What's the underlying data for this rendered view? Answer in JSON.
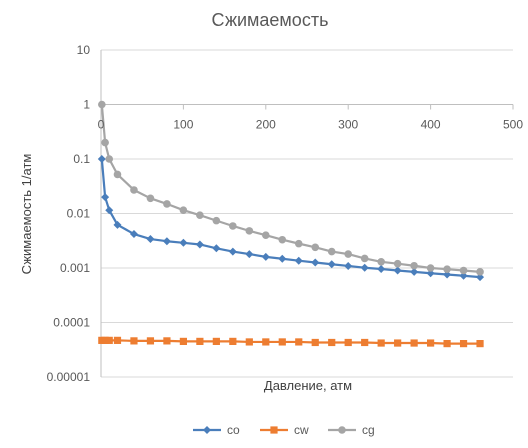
{
  "chart_data": {
    "type": "line",
    "title": "Сжимаемость",
    "xlabel": "Давление, атм",
    "ylabel": "Сжимаемость 1/атм",
    "xlim": [
      0,
      500
    ],
    "ylim": [
      1e-05,
      10
    ],
    "y_scale": "log",
    "x_ticks": [
      "0",
      "100",
      "200",
      "300",
      "400",
      "500"
    ],
    "y_ticks": [
      "10",
      "1",
      "0.1",
      "0.01",
      "0.001",
      "0.0001",
      "0.00001"
    ],
    "grid": true,
    "legend_position": "bottom",
    "x": [
      1,
      5,
      10,
      20,
      40,
      60,
      80,
      100,
      120,
      140,
      160,
      180,
      200,
      220,
      240,
      260,
      280,
      300,
      320,
      340,
      360,
      380,
      400,
      420,
      440,
      460
    ],
    "series": [
      {
        "name": "co",
        "color": "#4a7ebb",
        "marker": "diamond",
        "values": [
          0.1,
          0.02,
          0.0115,
          0.0062,
          0.0042,
          0.0034,
          0.0031,
          0.0029,
          0.0027,
          0.0023,
          0.002,
          0.0018,
          0.0016,
          0.00148,
          0.00136,
          0.00126,
          0.00117,
          0.00109,
          0.00101,
          0.00096,
          0.0009,
          0.00085,
          0.0008,
          0.00076,
          0.00072,
          0.00068
        ]
      },
      {
        "name": "cw",
        "color": "#ed7d31",
        "marker": "square",
        "values": [
          4.7e-05,
          4.7e-05,
          4.7e-05,
          4.7e-05,
          4.6e-05,
          4.6e-05,
          4.6e-05,
          4.5e-05,
          4.5e-05,
          4.5e-05,
          4.5e-05,
          4.4e-05,
          4.4e-05,
          4.4e-05,
          4.4e-05,
          4.3e-05,
          4.3e-05,
          4.3e-05,
          4.3e-05,
          4.2e-05,
          4.2e-05,
          4.2e-05,
          4.2e-05,
          4.1e-05,
          4.1e-05,
          4.1e-05
        ]
      },
      {
        "name": "cg",
        "color": "#a5a5a5",
        "marker": "circle",
        "values": [
          1.0,
          0.2,
          0.1,
          0.052,
          0.027,
          0.019,
          0.015,
          0.0115,
          0.0093,
          0.0074,
          0.0059,
          0.0048,
          0.004,
          0.0033,
          0.0028,
          0.0024,
          0.002,
          0.0018,
          0.0015,
          0.0013,
          0.0012,
          0.0011,
          0.001,
          0.00095,
          0.0009,
          0.00085
        ]
      }
    ]
  }
}
